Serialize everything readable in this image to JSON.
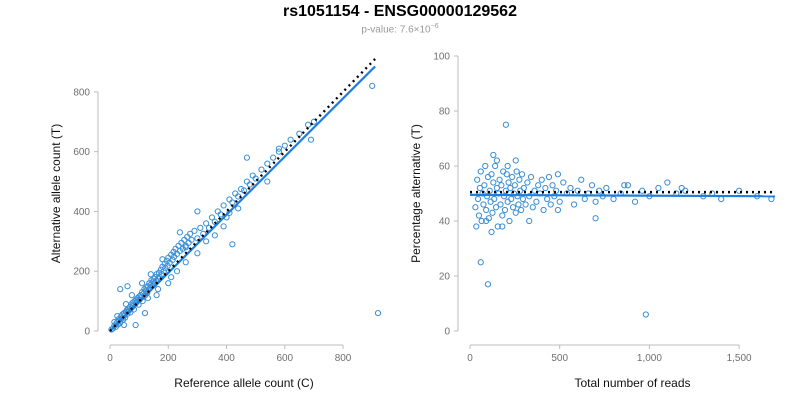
{
  "title": "rs1051154 - ENSG00000129562",
  "subtitle": {
    "prefix": "p-value: 7.6×10",
    "exponent": "−6"
  },
  "colors": {
    "points": "#3a8fd6",
    "fit": "#1f7fe0",
    "reference": "#000000",
    "axis": "#bdbdbd",
    "ticks": "#6f6f6f"
  },
  "chart_data": [
    {
      "type": "scatter",
      "xlabel": "Reference allele count (C)",
      "ylabel": "Alternative allele count (T)",
      "xlim": [
        0,
        920
      ],
      "ylim": [
        0,
        920
      ],
      "xticks": [
        0,
        200,
        400,
        600,
        800
      ],
      "yticks": [
        0,
        200,
        400,
        600,
        800
      ],
      "xtick_labels": [
        "0",
        "200",
        "400",
        "600",
        "800"
      ],
      "ytick_labels": [
        "0",
        "200",
        "400",
        "600",
        "800"
      ],
      "fit_line": {
        "x": [
          0,
          910
        ],
        "y": [
          0,
          885
        ]
      },
      "reference_line": {
        "x": [
          0,
          910
        ],
        "y": [
          0,
          910
        ]
      },
      "points": [
        [
          5,
          5
        ],
        [
          10,
          8
        ],
        [
          15,
          18
        ],
        [
          20,
          14
        ],
        [
          22,
          25
        ],
        [
          25,
          30
        ],
        [
          28,
          22
        ],
        [
          30,
          40
        ],
        [
          32,
          36
        ],
        [
          35,
          28
        ],
        [
          38,
          48
        ],
        [
          40,
          42
        ],
        [
          42,
          55
        ],
        [
          45,
          38
        ],
        [
          48,
          60
        ],
        [
          50,
          52
        ],
        [
          52,
          45
        ],
        [
          55,
          65
        ],
        [
          58,
          70
        ],
        [
          60,
          58
        ],
        [
          62,
          75
        ],
        [
          65,
          68
        ],
        [
          68,
          80
        ],
        [
          70,
          62
        ],
        [
          72,
          88
        ],
        [
          75,
          78
        ],
        [
          78,
          95
        ],
        [
          80,
          85
        ],
        [
          82,
          72
        ],
        [
          85,
          100
        ],
        [
          88,
          92
        ],
        [
          90,
          105
        ],
        [
          92,
          98
        ],
        [
          95,
          110
        ],
        [
          98,
          88
        ],
        [
          100,
          115
        ],
        [
          102,
          105
        ],
        [
          105,
          120
        ],
        [
          108,
          112
        ],
        [
          110,
          130
        ],
        [
          112,
          100
        ],
        [
          115,
          125
        ],
        [
          118,
          140
        ],
        [
          120,
          118
        ],
        [
          122,
          135
        ],
        [
          125,
          145
        ],
        [
          128,
          128
        ],
        [
          130,
          150
        ],
        [
          132,
          138
        ],
        [
          135,
          160
        ],
        [
          138,
          145
        ],
        [
          140,
          155
        ],
        [
          142,
          170
        ],
        [
          145,
          150
        ],
        [
          148,
          165
        ],
        [
          150,
          175
        ],
        [
          152,
          158
        ],
        [
          155,
          180
        ],
        [
          158,
          168
        ],
        [
          160,
          190
        ],
        [
          165,
          175
        ],
        [
          168,
          195
        ],
        [
          170,
          182
        ],
        [
          175,
          205
        ],
        [
          178,
          190
        ],
        [
          180,
          215
        ],
        [
          185,
          200
        ],
        [
          188,
          225
        ],
        [
          190,
          210
        ],
        [
          195,
          235
        ],
        [
          198,
          218
        ],
        [
          200,
          245
        ],
        [
          205,
          228
        ],
        [
          210,
          255
        ],
        [
          215,
          238
        ],
        [
          218,
          265
        ],
        [
          220,
          248
        ],
        [
          225,
          275
        ],
        [
          230,
          258
        ],
        [
          235,
          285
        ],
        [
          240,
          268
        ],
        [
          245,
          295
        ],
        [
          250,
          275
        ],
        [
          255,
          305
        ],
        [
          260,
          285
        ],
        [
          265,
          315
        ],
        [
          270,
          295
        ],
        [
          275,
          325
        ],
        [
          280,
          305
        ],
        [
          290,
          335
        ],
        [
          300,
          310
        ],
        [
          310,
          345
        ],
        [
          320,
          325
        ],
        [
          330,
          360
        ],
        [
          340,
          345
        ],
        [
          350,
          380
        ],
        [
          360,
          365
        ],
        [
          370,
          400
        ],
        [
          380,
          390
        ],
        [
          390,
          420
        ],
        [
          400,
          380
        ],
        [
          410,
          440
        ],
        [
          420,
          430
        ],
        [
          430,
          460
        ],
        [
          440,
          450
        ],
        [
          450,
          475
        ],
        [
          460,
          470
        ],
        [
          470,
          500
        ],
        [
          480,
          490
        ],
        [
          490,
          520
        ],
        [
          500,
          510
        ],
        [
          520,
          540
        ],
        [
          540,
          560
        ],
        [
          560,
          580
        ],
        [
          580,
          600
        ],
        [
          600,
          620
        ],
        [
          620,
          640
        ],
        [
          650,
          660
        ],
        [
          680,
          690
        ],
        [
          700,
          700
        ],
        [
          35,
          140
        ],
        [
          60,
          150
        ],
        [
          48,
          20
        ],
        [
          240,
          330
        ],
        [
          300,
          400
        ],
        [
          420,
          290
        ],
        [
          470,
          580
        ],
        [
          540,
          500
        ],
        [
          580,
          610
        ],
        [
          690,
          640
        ],
        [
          900,
          820
        ],
        [
          920,
          60
        ],
        [
          88,
          20
        ],
        [
          120,
          60
        ],
        [
          160,
          120
        ],
        [
          200,
          160
        ],
        [
          230,
          200
        ],
        [
          260,
          230
        ],
        [
          180,
          240
        ],
        [
          140,
          190
        ],
        [
          110,
          160
        ],
        [
          75,
          120
        ],
        [
          55,
          90
        ],
        [
          25,
          50
        ],
        [
          15,
          30
        ],
        [
          130,
          110
        ],
        [
          165,
          140
        ],
        [
          210,
          180
        ],
        [
          260,
          280
        ],
        [
          300,
          260
        ],
        [
          330,
          300
        ],
        [
          360,
          320
        ],
        [
          390,
          350
        ],
        [
          410,
          395
        ],
        [
          440,
          410
        ]
      ]
    },
    {
      "type": "scatter",
      "xlabel": "Total number of reads",
      "ylabel": "Percentage alternative (T)",
      "xlim": [
        0,
        1700
      ],
      "ylim": [
        0,
        100
      ],
      "xticks": [
        0,
        500,
        1000,
        1500
      ],
      "yticks": [
        0,
        20,
        40,
        60,
        80,
        100
      ],
      "xtick_labels": [
        "0",
        "500",
        "1,000",
        "1,500"
      ],
      "ytick_labels": [
        "0",
        "20",
        "40",
        "60",
        "80",
        "100"
      ],
      "fit_line": {
        "x": [
          0,
          1700
        ],
        "y": [
          49.5,
          49.0
        ]
      },
      "reference_line": {
        "x": [
          0,
          1700
        ],
        "y": [
          50.5,
          50.5
        ]
      },
      "points": [
        [
          30,
          45
        ],
        [
          35,
          38
        ],
        [
          40,
          55
        ],
        [
          45,
          48
        ],
        [
          50,
          42
        ],
        [
          55,
          52
        ],
        [
          60,
          58
        ],
        [
          65,
          40
        ],
        [
          70,
          50
        ],
        [
          75,
          46
        ],
        [
          80,
          53
        ],
        [
          85,
          60
        ],
        [
          90,
          44
        ],
        [
          95,
          49
        ],
        [
          100,
          56
        ],
        [
          105,
          41
        ],
        [
          110,
          51
        ],
        [
          115,
          47
        ],
        [
          120,
          57
        ],
        [
          125,
          43
        ],
        [
          130,
          54
        ],
        [
          135,
          48
        ],
        [
          140,
          60
        ],
        [
          145,
          45
        ],
        [
          150,
          52
        ],
        [
          155,
          38
        ],
        [
          160,
          50
        ],
        [
          165,
          55
        ],
        [
          170,
          46
        ],
        [
          175,
          53
        ],
        [
          180,
          42
        ],
        [
          185,
          58
        ],
        [
          190,
          49
        ],
        [
          195,
          44
        ],
        [
          200,
          51
        ],
        [
          205,
          57
        ],
        [
          210,
          47
        ],
        [
          215,
          54
        ],
        [
          220,
          40
        ],
        [
          225,
          52
        ],
        [
          230,
          48
        ],
        [
          235,
          56
        ],
        [
          240,
          45
        ],
        [
          245,
          50
        ],
        [
          250,
          53
        ],
        [
          255,
          43
        ],
        [
          260,
          58
        ],
        [
          265,
          49
        ],
        [
          270,
          46
        ],
        [
          275,
          55
        ],
        [
          280,
          51
        ],
        [
          285,
          44
        ],
        [
          290,
          57
        ],
        [
          295,
          48
        ],
        [
          300,
          52
        ],
        [
          310,
          46
        ],
        [
          320,
          54
        ],
        [
          330,
          49
        ],
        [
          340,
          56
        ],
        [
          350,
          45
        ],
        [
          360,
          51
        ],
        [
          370,
          47
        ],
        [
          380,
          53
        ],
        [
          390,
          50
        ],
        [
          400,
          55
        ],
        [
          410,
          44
        ],
        [
          420,
          52
        ],
        [
          430,
          48
        ],
        [
          440,
          56
        ],
        [
          450,
          46
        ],
        [
          460,
          53
        ],
        [
          470,
          49
        ],
        [
          480,
          51
        ],
        [
          490,
          57
        ],
        [
          500,
          47
        ],
        [
          520,
          54
        ],
        [
          540,
          50
        ],
        [
          560,
          52
        ],
        [
          580,
          46
        ],
        [
          600,
          51
        ],
        [
          620,
          55
        ],
        [
          640,
          48
        ],
        [
          660,
          50
        ],
        [
          680,
          53
        ],
        [
          700,
          47
        ],
        [
          720,
          51
        ],
        [
          740,
          49
        ],
        [
          760,
          52
        ],
        [
          800,
          48
        ],
        [
          840,
          50
        ],
        [
          880,
          53
        ],
        [
          920,
          47
        ],
        [
          960,
          51
        ],
        [
          1000,
          49
        ],
        [
          1050,
          52
        ],
        [
          1100,
          54
        ],
        [
          1150,
          50
        ],
        [
          1200,
          51
        ],
        [
          1300,
          49
        ],
        [
          1350,
          50
        ],
        [
          1400,
          48
        ],
        [
          1500,
          51
        ],
        [
          1600,
          49
        ],
        [
          1680,
          48
        ],
        [
          60,
          25
        ],
        [
          100,
          17
        ],
        [
          200,
          75
        ],
        [
          980,
          6
        ],
        [
          700,
          41
        ],
        [
          150,
          62
        ],
        [
          255,
          62
        ],
        [
          210,
          60
        ],
        [
          120,
          36
        ],
        [
          90,
          40
        ],
        [
          180,
          38
        ],
        [
          330,
          40
        ],
        [
          130,
          64
        ],
        [
          1180,
          52
        ],
        [
          860,
          53
        ],
        [
          490,
          44
        ]
      ]
    }
  ]
}
